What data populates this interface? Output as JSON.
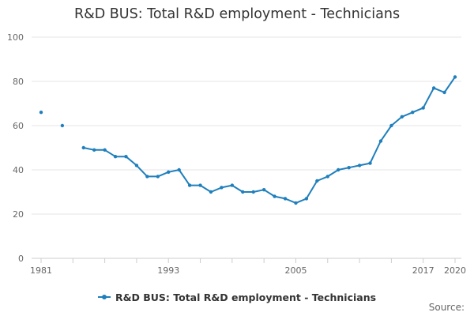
{
  "colors": {
    "series": "#1f7fbc",
    "grid": "#e6e6e6",
    "axis": "#cccccc",
    "text": "#666666"
  },
  "chart_data": {
    "type": "line",
    "title": "R&D BUS: Total R&D employment - Technicians",
    "xlabel": "",
    "ylabel": "",
    "xlim": [
      1981,
      2020
    ],
    "ylim": [
      0,
      100
    ],
    "yticks": [
      0,
      20,
      40,
      60,
      80,
      100
    ],
    "xticks": [
      1981,
      1993,
      2005,
      2017,
      2020
    ],
    "grid": true,
    "legend_position": "bottom",
    "series": [
      {
        "name": "R&D BUS: Total R&D employment - Technicians",
        "x": [
          1981,
          1983,
          1985,
          1986,
          1987,
          1988,
          1989,
          1990,
          1991,
          1992,
          1993,
          1994,
          1995,
          1996,
          1997,
          1998,
          1999,
          2000,
          2001,
          2002,
          2003,
          2004,
          2005,
          2006,
          2007,
          2008,
          2009,
          2010,
          2011,
          2012,
          2013,
          2014,
          2015,
          2016,
          2017,
          2018,
          2019,
          2020
        ],
        "values": [
          66,
          60,
          50,
          49,
          49,
          46,
          46,
          42,
          37,
          37,
          39,
          40,
          33,
          33,
          30,
          32,
          33,
          30,
          30,
          31,
          28,
          27,
          25,
          27,
          35,
          37,
          40,
          41,
          42,
          43,
          53,
          60,
          64,
          66,
          68,
          77,
          75,
          82
        ]
      }
    ]
  },
  "footer": {
    "source": "Source:"
  }
}
